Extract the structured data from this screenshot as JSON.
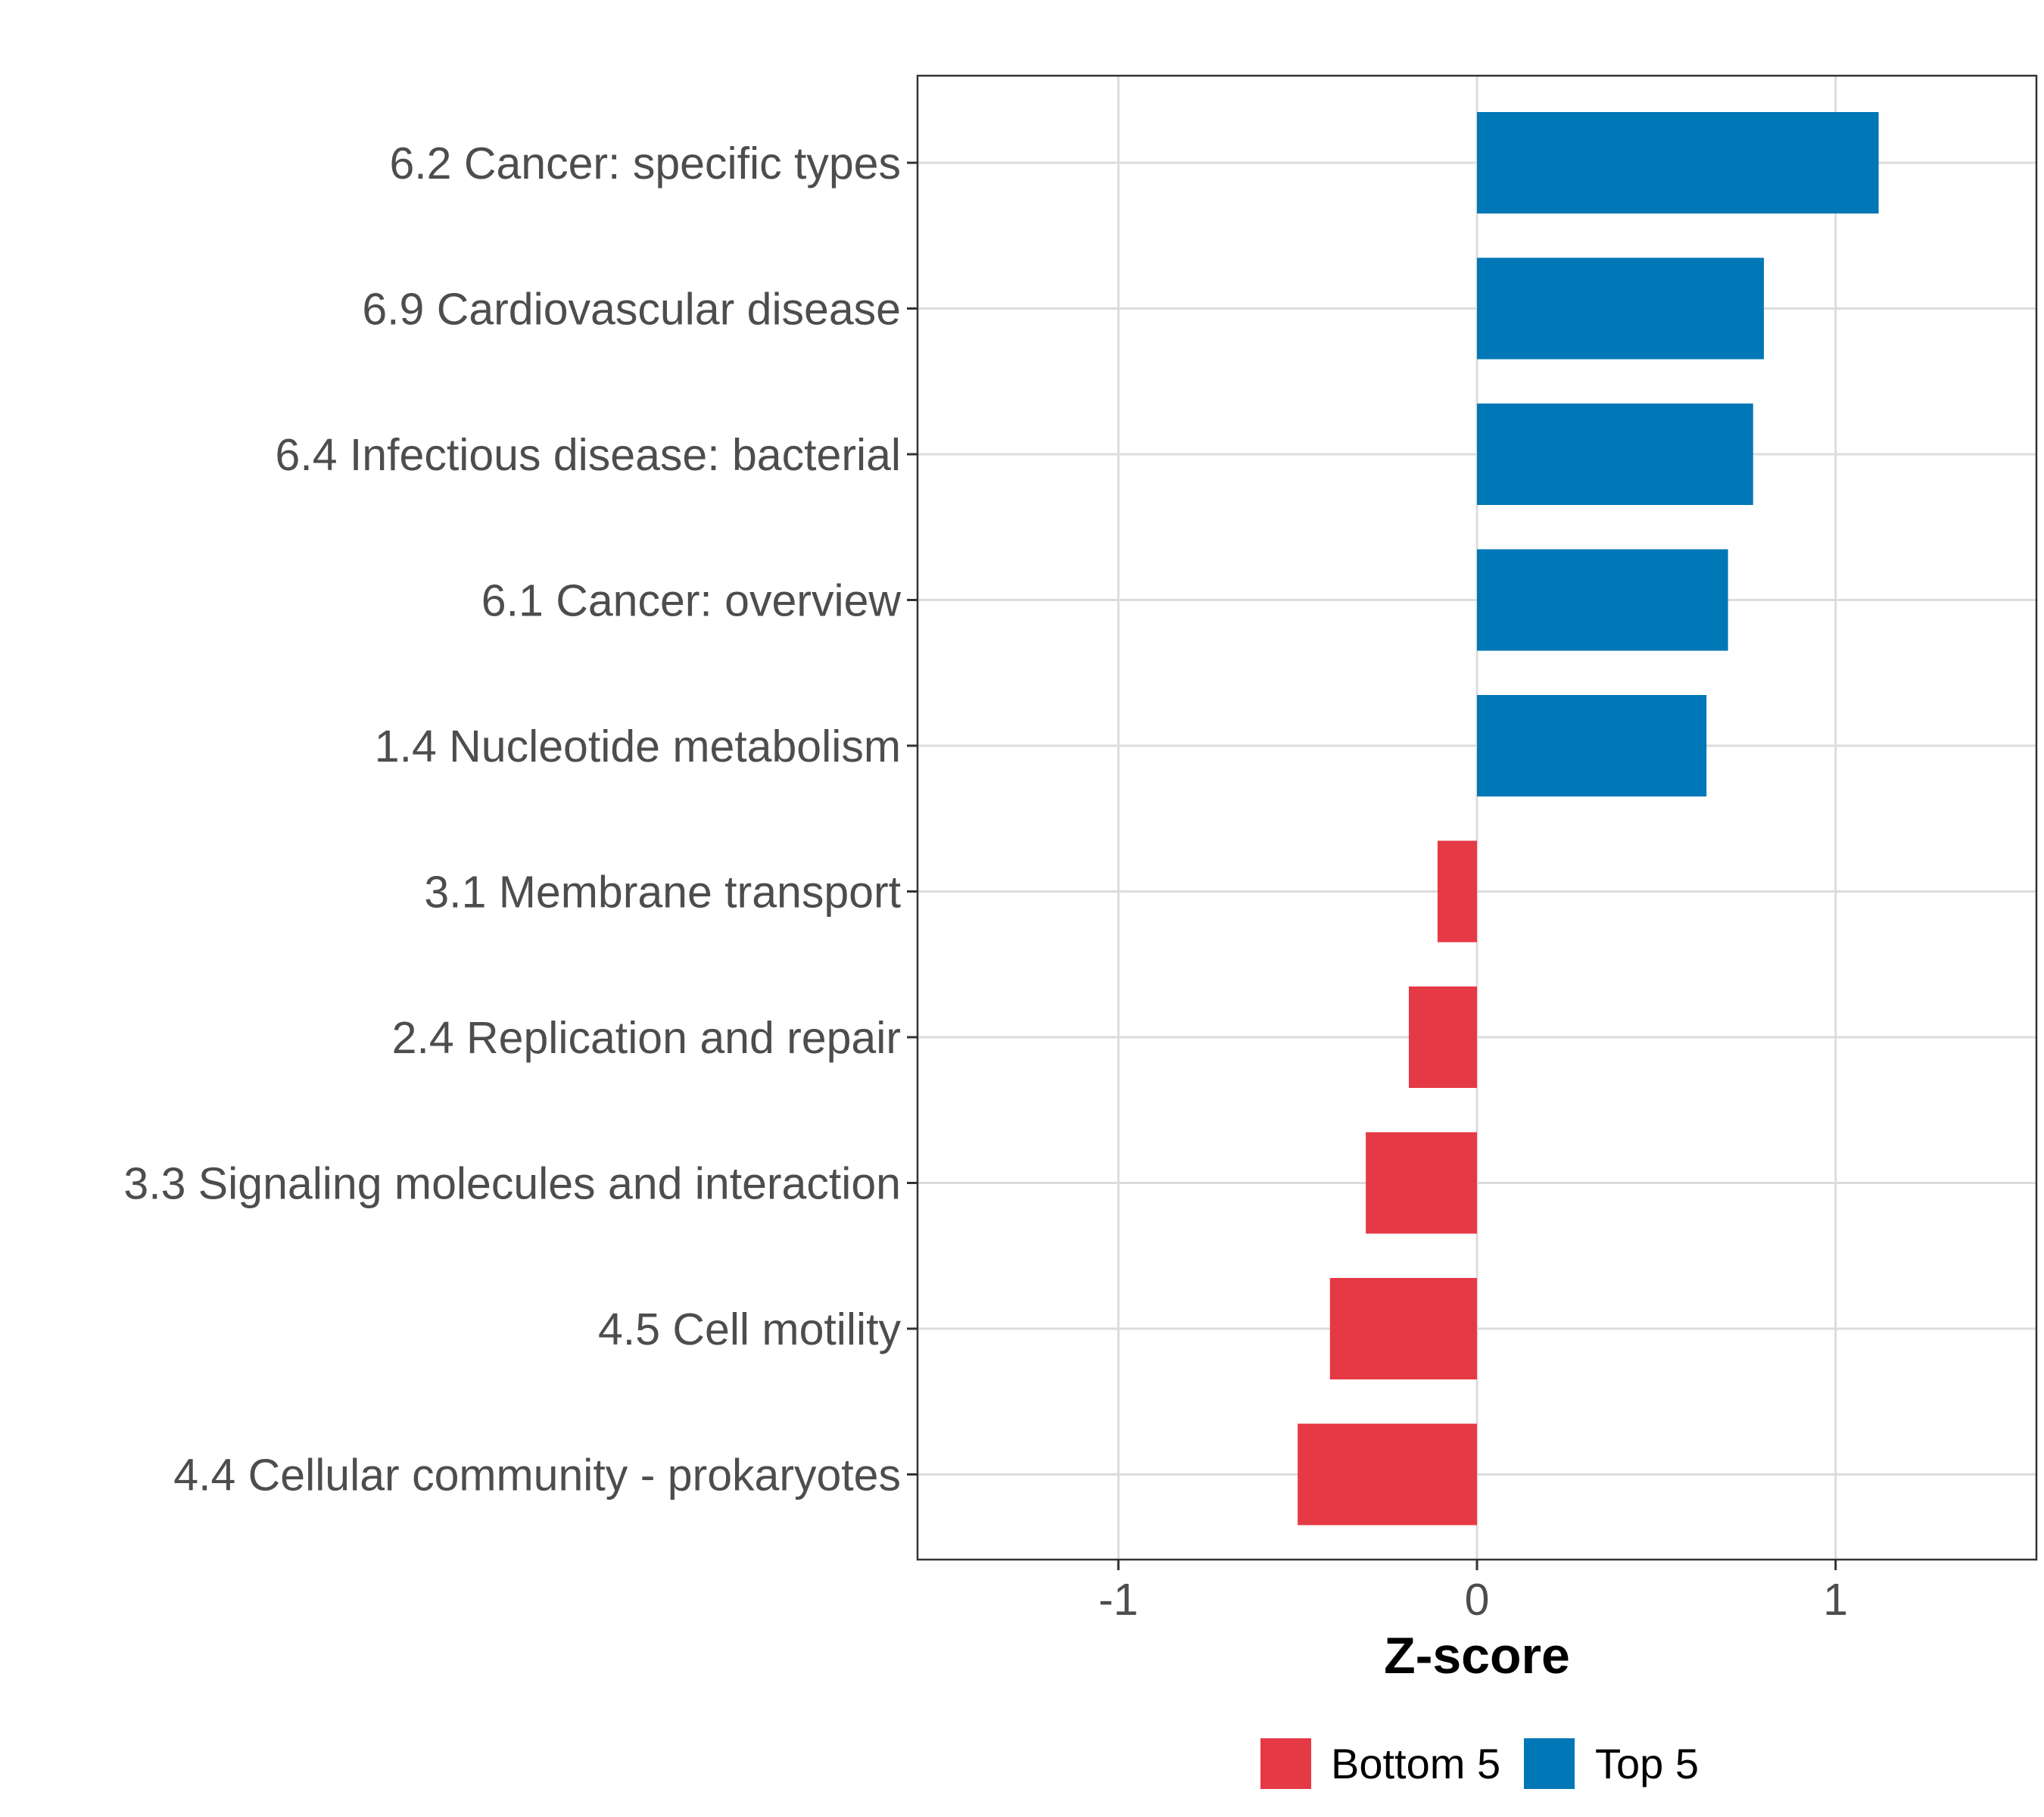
{
  "chart_data": {
    "type": "bar",
    "orientation": "horizontal",
    "title": "",
    "xlabel": "Z-score",
    "ylabel": "",
    "xlim": [
      -1.56,
      1.56
    ],
    "xticks": [
      -1,
      0,
      1
    ],
    "xtick_labels": [
      "-1",
      "0",
      "1"
    ],
    "grid": true,
    "legend_position": "bottom",
    "categories": [
      "6.2 Cancer: specific types",
      "6.9 Cardiovascular disease",
      "6.4 Infectious disease: bacterial",
      "6.1 Cancer: overview",
      "1.4 Nucleotide metabolism",
      "3.1 Membrane transport",
      "2.4 Replication and repair",
      "3.3 Signaling molecules and interaction",
      "4.5 Cell motility",
      "4.4 Cellular community - prokaryotes"
    ],
    "values": [
      1.12,
      0.8,
      0.77,
      0.7,
      0.64,
      -0.11,
      -0.19,
      -0.31,
      -0.41,
      -0.5
    ],
    "groups": [
      "Top 5",
      "Top 5",
      "Top 5",
      "Top 5",
      "Top 5",
      "Bottom 5",
      "Bottom 5",
      "Bottom 5",
      "Bottom 5",
      "Bottom 5"
    ],
    "legend": [
      {
        "label": "Bottom 5",
        "color": "#e63946"
      },
      {
        "label": "Top 5",
        "color": "#0077b6"
      }
    ],
    "colors": {
      "Top 5": "#0077b6",
      "Bottom 5": "#e63946"
    }
  }
}
